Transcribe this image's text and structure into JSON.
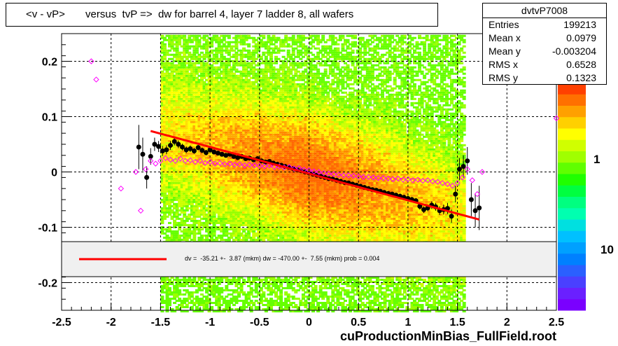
{
  "title": "<v - vP>       versus  tvP =>  dw for barrel 4, layer 7 ladder 8, all wafers",
  "stats": {
    "name": "dvtvP7008",
    "rows": [
      {
        "label": "Entries",
        "value": "199213"
      },
      {
        "label": "Mean x",
        "value": "0.0979"
      },
      {
        "label": "Mean y",
        "value": "-0.003204"
      },
      {
        "label": "RMS x",
        "value": "0.6528"
      },
      {
        "label": "RMS y",
        "value": "0.1323"
      }
    ]
  },
  "footer": "cuProductionMinBias_FullField.root",
  "chart_data": {
    "type": "heatmap",
    "title": "<v - vP>       versus  tvP =>  dw for barrel 4, layer 7 ladder 8, all wafers",
    "xlim": [
      -2.5,
      2.5
    ],
    "ylim": [
      -0.25,
      0.25
    ],
    "x_ticks": [
      "-2.5",
      "-2",
      "-1.5",
      "-1",
      "-0.5",
      "0",
      "0.5",
      "1",
      "1.5",
      "2",
      "2.5"
    ],
    "y_ticks": [
      "0.2",
      "0.1",
      "0",
      "-0.1",
      "-0.2"
    ],
    "grid": true,
    "colorbar_labels": [
      "1",
      "10"
    ],
    "fit_line": {
      "x": [
        -1.6,
        1.72
      ],
      "y": [
        0.074,
        -0.086
      ]
    },
    "legend_text": "dv =  -35.21 +-  3.87 (mkm) dw = -470.00 +-  7.55 (mkm) prob = 0.004",
    "series": [
      {
        "marker": "black-filled",
        "x": [
          -1.72,
          -1.68,
          -1.64,
          -1.6,
          -1.56,
          -1.52,
          -1.48,
          -1.44,
          -1.4,
          -1.36,
          -1.32,
          -1.28,
          -1.24,
          -1.2,
          -1.16,
          -1.12,
          -1.08,
          -1.04,
          -1.0,
          -0.96,
          -0.92,
          -0.88,
          -0.84,
          -0.8,
          -0.76,
          -0.72,
          -0.68,
          -0.64,
          -0.6,
          -0.56,
          -0.52,
          -0.48,
          -0.44,
          -0.4,
          -0.36,
          -0.32,
          -0.28,
          -0.24,
          -0.2,
          -0.16,
          -0.12,
          -0.08,
          -0.04,
          0.0,
          0.04,
          0.08,
          0.12,
          0.16,
          0.2,
          0.24,
          0.28,
          0.32,
          0.36,
          0.4,
          0.44,
          0.48,
          0.52,
          0.56,
          0.6,
          0.64,
          0.68,
          0.72,
          0.76,
          0.8,
          0.84,
          0.88,
          0.92,
          0.96,
          1.0,
          1.04,
          1.08,
          1.12,
          1.16,
          1.2,
          1.24,
          1.28,
          1.32,
          1.36,
          1.4,
          1.44,
          1.48,
          1.52,
          1.56,
          1.6,
          1.64,
          1.68,
          1.72
        ],
        "y": [
          0.045,
          0.032,
          -0.01,
          0.028,
          0.05,
          0.046,
          0.038,
          0.04,
          0.048,
          0.055,
          0.05,
          0.045,
          0.04,
          0.042,
          0.038,
          0.044,
          0.039,
          0.035,
          0.04,
          0.036,
          0.034,
          0.032,
          0.03,
          0.032,
          0.028,
          0.026,
          0.028,
          0.024,
          0.025,
          0.022,
          0.024,
          0.02,
          0.018,
          0.019,
          0.016,
          0.014,
          0.012,
          0.01,
          0.008,
          0.006,
          0.004,
          0.002,
          0.0,
          -0.002,
          -0.004,
          -0.006,
          -0.008,
          -0.01,
          -0.012,
          -0.013,
          -0.015,
          -0.017,
          -0.019,
          -0.02,
          -0.022,
          -0.024,
          -0.026,
          -0.028,
          -0.03,
          -0.032,
          -0.033,
          -0.035,
          -0.037,
          -0.039,
          -0.04,
          -0.042,
          -0.044,
          -0.046,
          -0.048,
          -0.05,
          -0.052,
          -0.062,
          -0.068,
          -0.065,
          -0.06,
          -0.063,
          -0.07,
          -0.068,
          -0.066,
          -0.08,
          -0.04,
          0.005,
          0.01,
          0.02,
          -0.05,
          -0.07,
          -0.065
        ],
        "err": [
          0.04,
          0.03,
          0.02,
          0.015,
          0.012,
          0.01,
          0.009,
          0.008,
          0.008,
          0.007,
          0.007,
          0.006,
          0.006,
          0.006,
          0.005,
          0.005,
          0.005,
          0.005,
          0.004,
          0.004,
          0.004,
          0.004,
          0.004,
          0.004,
          0.004,
          0.004,
          0.004,
          0.004,
          0.004,
          0.004,
          0.004,
          0.004,
          0.004,
          0.004,
          0.004,
          0.004,
          0.004,
          0.004,
          0.004,
          0.004,
          0.004,
          0.004,
          0.004,
          0.004,
          0.004,
          0.004,
          0.004,
          0.004,
          0.004,
          0.004,
          0.004,
          0.004,
          0.004,
          0.004,
          0.004,
          0.004,
          0.004,
          0.004,
          0.004,
          0.004,
          0.004,
          0.004,
          0.004,
          0.004,
          0.004,
          0.004,
          0.005,
          0.005,
          0.005,
          0.005,
          0.005,
          0.006,
          0.006,
          0.006,
          0.007,
          0.007,
          0.008,
          0.009,
          0.01,
          0.012,
          0.015,
          0.02,
          0.02,
          0.025,
          0.03,
          0.03,
          0.04
        ]
      },
      {
        "marker": "magenta-open",
        "x": [
          -2.2,
          -2.15,
          -1.9,
          -1.75,
          -1.7,
          -1.65,
          -1.6,
          -1.55,
          -1.5,
          -1.45,
          -1.4,
          -1.35,
          -1.3,
          -1.25,
          -1.2,
          -1.15,
          -1.1,
          -1.05,
          -1.0,
          -0.95,
          -0.9,
          -0.85,
          -0.8,
          -0.75,
          -0.7,
          -0.65,
          -0.6,
          -0.55,
          -0.5,
          -0.45,
          -0.4,
          -0.35,
          -0.3,
          -0.25,
          -0.2,
          -0.15,
          -0.1,
          -0.05,
          0.0,
          0.05,
          0.1,
          0.15,
          0.2,
          0.25,
          0.3,
          0.35,
          0.4,
          0.45,
          0.5,
          0.55,
          0.6,
          0.65,
          0.7,
          0.75,
          0.8,
          0.85,
          0.9,
          0.95,
          1.0,
          1.05,
          1.1,
          1.15,
          1.2,
          1.25,
          1.3,
          1.35,
          1.4,
          1.45,
          1.5,
          1.55,
          1.6,
          1.65,
          1.7,
          1.75,
          2.5
        ],
        "y": [
          0.2,
          0.167,
          -0.03,
          0.0,
          -0.07,
          0.005,
          0.02,
          0.015,
          0.02,
          0.025,
          0.022,
          0.02,
          0.024,
          0.02,
          0.021,
          0.018,
          0.02,
          0.016,
          0.018,
          0.015,
          0.016,
          0.014,
          0.015,
          0.013,
          0.014,
          0.012,
          0.013,
          0.012,
          0.011,
          0.01,
          0.011,
          0.009,
          0.01,
          0.008,
          0.009,
          0.006,
          0.007,
          0.004,
          0.003,
          0.001,
          0.0,
          -0.002,
          -0.003,
          -0.004,
          -0.005,
          -0.006,
          -0.006,
          -0.007,
          -0.008,
          -0.009,
          -0.009,
          -0.01,
          -0.011,
          -0.011,
          -0.012,
          -0.013,
          -0.012,
          -0.014,
          -0.013,
          -0.015,
          -0.014,
          -0.016,
          -0.015,
          -0.017,
          -0.018,
          -0.02,
          -0.022,
          -0.025,
          -0.02,
          -0.01,
          0.005,
          -0.015,
          -0.04,
          0.0,
          0.097
        ]
      }
    ]
  }
}
